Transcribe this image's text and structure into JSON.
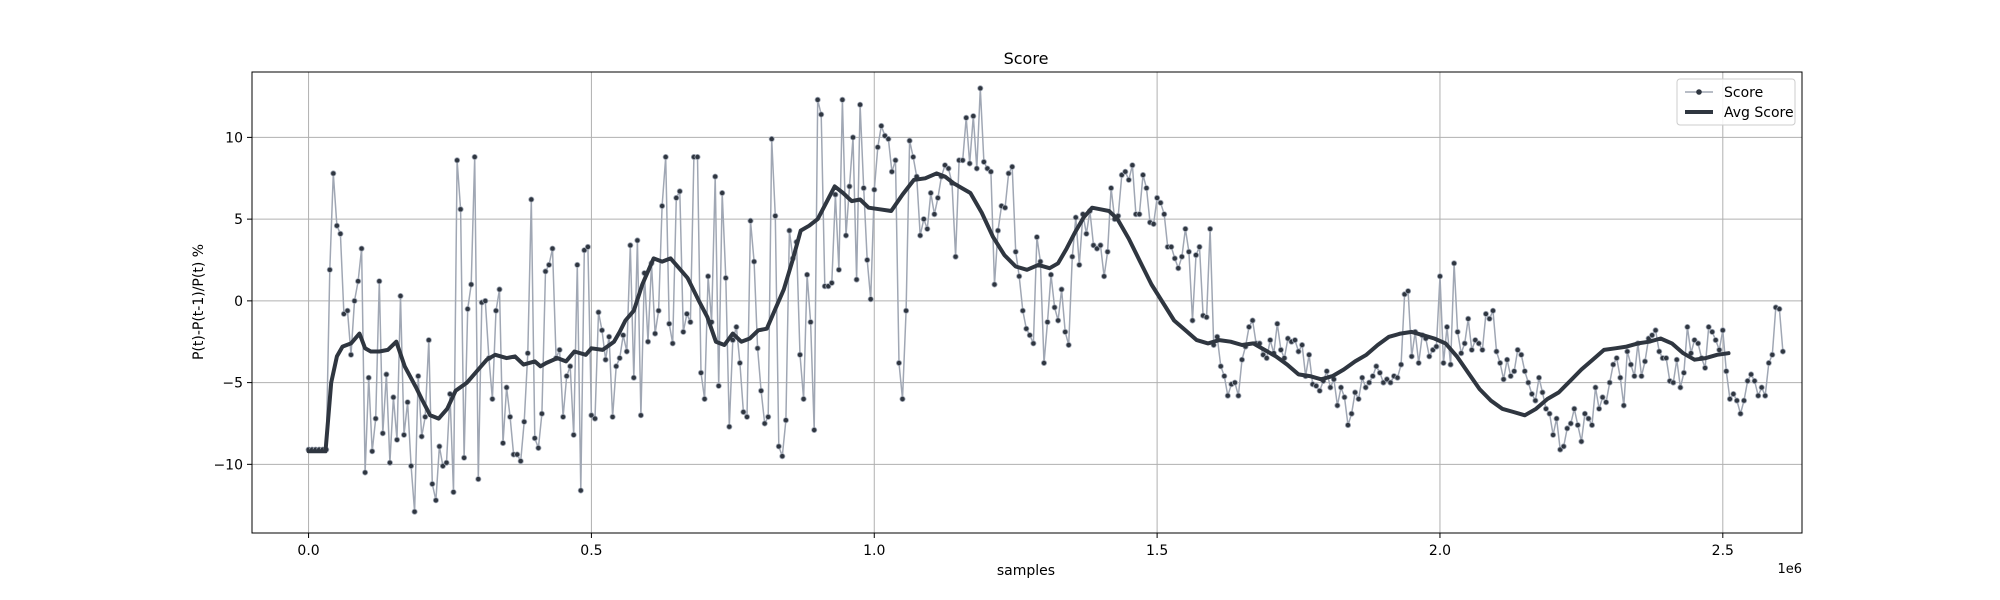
{
  "chart_data": {
    "type": "line",
    "title": "Score",
    "xlabel": "samples",
    "ylabel": "P(t)-P(t-1)/P(t) %",
    "x_offset_label": "1e6",
    "xlim": [
      -0.1,
      2.64
    ],
    "ylim": [
      -14.2,
      14.0
    ],
    "x_ticks": [
      0.0,
      0.5,
      1.0,
      1.5,
      2.0,
      2.5
    ],
    "x_tick_labels": [
      "0.0",
      "0.5",
      "1.0",
      "1.5",
      "2.0",
      "2.5"
    ],
    "y_ticks": [
      -10,
      -5,
      0,
      5,
      10
    ],
    "y_tick_labels": [
      "−10",
      "−5",
      "0",
      "5",
      "10"
    ],
    "grid": true,
    "legend_position": "top-right",
    "colors": {
      "score": "#a0a7b4",
      "score_marker": "#2f3640",
      "avg": "#2f3640"
    },
    "series": [
      {
        "name": "Score",
        "x_start": 0.0,
        "x_step": 0.00625,
        "values": [
          -9.1,
          -9.1,
          -9.1,
          -9.1,
          -9.1,
          -9.1,
          1.9,
          7.8,
          4.6,
          4.1,
          -0.8,
          -0.6,
          -3.3,
          0.0,
          1.2,
          3.2,
          -10.5,
          -4.7,
          -9.2,
          -7.2,
          1.2,
          -8.1,
          -4.5,
          -9.9,
          -5.9,
          -8.5,
          0.3,
          -8.2,
          -6.2,
          -10.1,
          -12.9,
          -4.6,
          -8.3,
          -7.1,
          -2.4,
          -11.2,
          -12.2,
          -8.9,
          -10.1,
          -9.9,
          -5.7,
          -11.7,
          8.6,
          5.6,
          -9.6,
          -0.5,
          1.0,
          8.8,
          -10.9,
          -0.1,
          0.0,
          -3.5,
          -6.0,
          -0.6,
          0.7,
          -8.7,
          -5.3,
          -7.1,
          -9.4,
          -9.4,
          -9.8,
          -7.4,
          -3.2,
          6.2,
          -8.4,
          -9.0,
          -6.9,
          1.8,
          2.2,
          3.2,
          -3.5,
          -3.0,
          -7.1,
          -4.6,
          -4.0,
          -8.2,
          2.2,
          -11.6,
          3.1,
          3.3,
          -7.0,
          -7.2,
          -0.7,
          -1.8,
          -3.6,
          -2.2,
          -7.1,
          -4.0,
          -3.5,
          -2.1,
          -3.1,
          3.4,
          -4.7,
          3.7,
          -7.0,
          1.7,
          -2.5,
          2.3,
          -2.0,
          -0.6,
          5.8,
          8.8,
          -1.4,
          -2.6,
          6.3,
          6.7,
          -1.9,
          -0.8,
          -1.3,
          8.8,
          8.8,
          -4.4,
          -6.0,
          1.5,
          -1.3,
          7.6,
          -5.2,
          6.6,
          1.4,
          -7.7,
          -2.4,
          -1.6,
          -3.8,
          -6.8,
          -7.1,
          4.9,
          2.4,
          -2.9,
          -5.5,
          -7.5,
          -7.1,
          9.9,
          5.2,
          -8.9,
          -9.5,
          -7.3,
          4.3,
          2.6,
          3.6,
          -3.3,
          -6.0,
          1.6,
          -1.3,
          -7.9,
          12.3,
          11.4,
          0.9,
          0.9,
          1.1,
          6.5,
          1.9,
          12.3,
          4.0,
          7.0,
          10.0,
          1.3,
          12.0,
          6.9,
          2.5,
          0.1,
          6.8,
          9.4,
          10.7,
          10.1,
          9.9,
          7.9,
          8.6,
          -3.8,
          -6.0,
          -0.6,
          9.8,
          8.8,
          7.6,
          4.0,
          5.0,
          4.4,
          6.6,
          5.3,
          6.3,
          7.6,
          8.3,
          8.1,
          7.2,
          2.7,
          8.6,
          8.6,
          11.2,
          8.4,
          11.3,
          8.1,
          13.0,
          8.5,
          8.1,
          7.9,
          1.0,
          4.3,
          5.8,
          5.7,
          7.8,
          8.2,
          3.0,
          1.5,
          -0.6,
          -1.7,
          -2.1,
          -2.6,
          3.9,
          2.4,
          -3.8,
          -1.3,
          1.6,
          -0.4,
          -1.2,
          0.7,
          -1.9,
          -2.7,
          2.7,
          5.1,
          2.2,
          5.3,
          4.1,
          5.5,
          3.4,
          3.2,
          3.4,
          1.5,
          3.0,
          6.9,
          5.0,
          5.2,
          7.7,
          7.9,
          7.4,
          8.3,
          5.3,
          5.3,
          7.7,
          6.9,
          4.8,
          4.7,
          6.3,
          6.0,
          5.3,
          3.3,
          3.3,
          2.6,
          2.0,
          2.7,
          4.4,
          3.0,
          -1.2,
          2.8,
          3.3,
          -0.9,
          -1.0,
          4.4,
          -2.7,
          -2.2,
          -4.0,
          -4.6,
          -5.8,
          -5.1,
          -5.0,
          -5.8,
          -3.6,
          -2.8,
          -1.6,
          -1.2,
          -2.6,
          -2.6,
          -3.3,
          -3.5,
          -2.4,
          -3.2,
          -1.4,
          -3.0,
          -3.5,
          -2.3,
          -2.5,
          -2.4,
          -3.1,
          -2.7,
          -4.6,
          -3.3,
          -5.1,
          -5.2,
          -5.5,
          -4.9,
          -4.3,
          -5.3,
          -4.8,
          -6.4,
          -5.3,
          -5.9,
          -7.6,
          -6.9,
          -5.6,
          -6.0,
          -4.7,
          -5.3,
          -5.0,
          -4.6,
          -4.0,
          -4.4,
          -5.0,
          -4.8,
          -5.0,
          -4.6,
          -4.7,
          -3.9,
          0.4,
          0.6,
          -3.4,
          -1.9,
          -3.8,
          -2.1,
          -2.3,
          -3.4,
          -3.0,
          -2.8,
          1.5,
          -3.8,
          -1.6,
          -3.9,
          2.3,
          -1.9,
          -3.2,
          -2.6,
          -1.1,
          -3.0,
          -2.4,
          -2.6,
          -3.0,
          -0.8,
          -1.1,
          -0.6,
          -3.1,
          -3.8,
          -4.8,
          -3.6,
          -4.6,
          -4.3,
          -3.0,
          -3.3,
          -4.3,
          -5.0,
          -5.7,
          -6.1,
          -4.7,
          -5.6,
          -6.6,
          -6.9,
          -8.2,
          -7.2,
          -9.1,
          -8.9,
          -7.8,
          -7.5,
          -6.6,
          -7.6,
          -8.6,
          -6.9,
          -7.2,
          -7.6,
          -5.3,
          -6.6,
          -5.9,
          -6.2,
          -5.0,
          -3.9,
          -3.5,
          -4.7,
          -6.4,
          -3.1,
          -3.9,
          -4.6,
          -2.6,
          -4.6,
          -3.7,
          -2.3,
          -2.1,
          -1.8,
          -3.1,
          -3.5,
          -3.5,
          -4.9,
          -5.0,
          -3.6,
          -5.3,
          -4.4,
          -1.6,
          -3.2,
          -2.4,
          -2.6,
          -3.5,
          -4.1,
          -1.6,
          -1.9,
          -2.4,
          -3.0,
          -1.8,
          -4.3,
          -6.0,
          -5.7,
          -6.1,
          -6.9,
          -6.1,
          -4.9,
          -4.5,
          -4.9,
          -5.8,
          -5.3,
          -5.8,
          -3.8,
          -3.3,
          -0.4,
          -0.5,
          -3.1
        ]
      },
      {
        "name": "Avg Score",
        "x": [
          0.0,
          0.03,
          0.04,
          0.05,
          0.06,
          0.075,
          0.09,
          0.1,
          0.11,
          0.125,
          0.14,
          0.155,
          0.17,
          0.19,
          0.2,
          0.215,
          0.23,
          0.245,
          0.26,
          0.28,
          0.3,
          0.315,
          0.33,
          0.35,
          0.365,
          0.38,
          0.4,
          0.41,
          0.42,
          0.44,
          0.455,
          0.47,
          0.49,
          0.5,
          0.52,
          0.54,
          0.55,
          0.56,
          0.575,
          0.59,
          0.61,
          0.625,
          0.64,
          0.655,
          0.67,
          0.69,
          0.705,
          0.72,
          0.735,
          0.75,
          0.765,
          0.78,
          0.795,
          0.81,
          0.825,
          0.84,
          0.855,
          0.87,
          0.885,
          0.9,
          0.915,
          0.93,
          0.945,
          0.96,
          0.975,
          0.99,
          1.01,
          1.03,
          1.05,
          1.07,
          1.09,
          1.11,
          1.125,
          1.14,
          1.155,
          1.17,
          1.19,
          1.21,
          1.23,
          1.25,
          1.27,
          1.29,
          1.31,
          1.325,
          1.34,
          1.355,
          1.37,
          1.385,
          1.4,
          1.415,
          1.43,
          1.45,
          1.47,
          1.49,
          1.51,
          1.53,
          1.55,
          1.57,
          1.59,
          1.61,
          1.63,
          1.65,
          1.67,
          1.69,
          1.71,
          1.73,
          1.75,
          1.77,
          1.79,
          1.81,
          1.83,
          1.85,
          1.87,
          1.89,
          1.91,
          1.93,
          1.95,
          1.97,
          1.99,
          2.01,
          2.03,
          2.05,
          2.07,
          2.09,
          2.11,
          2.13,
          2.15,
          2.17,
          2.19,
          2.21,
          2.23,
          2.25,
          2.27,
          2.29,
          2.31,
          2.33,
          2.35,
          2.37,
          2.39,
          2.41,
          2.43,
          2.45,
          2.47,
          2.49,
          2.51
        ],
        "values": [
          -9.2,
          -9.2,
          -5.0,
          -3.4,
          -2.8,
          -2.6,
          -2.0,
          -2.9,
          -3.1,
          -3.1,
          -3.0,
          -2.5,
          -4.0,
          -5.3,
          -6.0,
          -7.0,
          -7.2,
          -6.6,
          -5.5,
          -5.0,
          -4.2,
          -3.6,
          -3.3,
          -3.5,
          -3.4,
          -3.9,
          -3.7,
          -4.0,
          -3.8,
          -3.5,
          -3.7,
          -3.1,
          -3.3,
          -2.9,
          -3.0,
          -2.5,
          -1.9,
          -1.2,
          -0.6,
          1.0,
          2.6,
          2.4,
          2.6,
          2.0,
          1.4,
          0.0,
          -1.0,
          -2.5,
          -2.7,
          -2.0,
          -2.5,
          -2.3,
          -1.8,
          -1.7,
          -0.5,
          0.7,
          2.4,
          4.3,
          4.6,
          5.0,
          6.0,
          7.0,
          6.6,
          6.1,
          6.2,
          5.7,
          5.6,
          5.5,
          6.5,
          7.4,
          7.5,
          7.8,
          7.6,
          7.2,
          6.9,
          6.6,
          5.4,
          3.9,
          2.8,
          2.1,
          1.9,
          2.2,
          2.0,
          2.3,
          3.2,
          4.2,
          5.1,
          5.7,
          5.6,
          5.5,
          5.0,
          3.8,
          2.4,
          1.0,
          -0.1,
          -1.2,
          -1.8,
          -2.4,
          -2.6,
          -2.4,
          -2.5,
          -2.7,
          -2.6,
          -3.0,
          -3.4,
          -3.9,
          -4.5,
          -4.6,
          -4.8,
          -4.6,
          -4.2,
          -3.7,
          -3.3,
          -2.7,
          -2.2,
          -2.0,
          -1.9,
          -2.1,
          -2.3,
          -2.6,
          -3.4,
          -4.4,
          -5.4,
          -6.1,
          -6.6,
          -6.8,
          -7.0,
          -6.6,
          -6.0,
          -5.6,
          -4.9,
          -4.2,
          -3.6,
          -3.0,
          -2.9,
          -2.8,
          -2.6,
          -2.5,
          -2.3,
          -2.6,
          -3.2,
          -3.6,
          -3.5,
          -3.3,
          -3.2
        ]
      }
    ]
  }
}
